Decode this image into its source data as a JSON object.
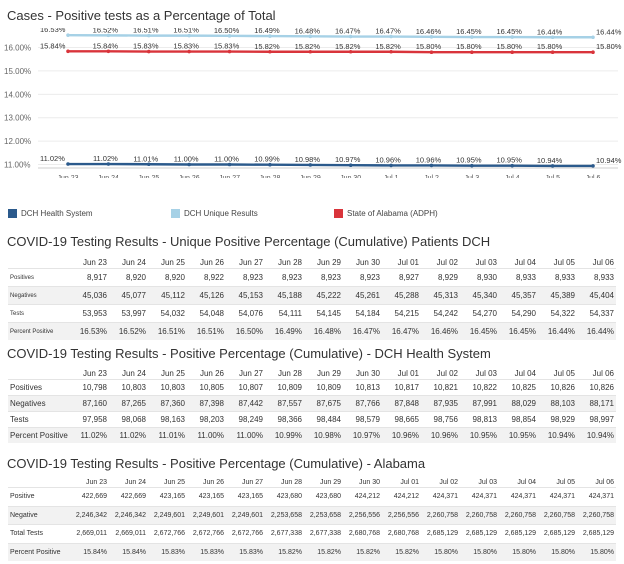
{
  "chart_title": "Cases - Positive tests as a Percentage of Total",
  "chart_data": {
    "type": "line",
    "x": [
      "Jun 23",
      "Jun 24",
      "Jun 25",
      "Jun 26",
      "Jun 27",
      "Jun 28",
      "Jun 29",
      "Jun 30",
      "Jul 1",
      "Jul 2",
      "Jul 3",
      "Jul 4",
      "Jul 5",
      "Jul 6"
    ],
    "series": [
      {
        "name": "DCH Health System",
        "color": "#2b5a8c",
        "values": [
          11.02,
          11.02,
          11.01,
          11.0,
          11.0,
          10.99,
          10.98,
          10.97,
          10.96,
          10.96,
          10.95,
          10.95,
          10.94,
          10.94
        ]
      },
      {
        "name": "DCH Unique Results",
        "color": "#a6d1e6",
        "values": [
          16.53,
          16.52,
          16.51,
          16.51,
          16.5,
          16.49,
          16.48,
          16.47,
          16.47,
          16.46,
          16.45,
          16.45,
          16.44,
          16.44
        ]
      },
      {
        "name": "State of Alabama (ADPH)",
        "color": "#d9343b",
        "values": [
          15.84,
          15.84,
          15.83,
          15.83,
          15.83,
          15.82,
          15.82,
          15.82,
          15.82,
          15.8,
          15.8,
          15.8,
          15.8,
          15.8
        ]
      }
    ],
    "data_labels": {
      "DCH Health System": [
        "11.02%",
        "11.02%",
        "11.01%",
        "11.00%",
        "11.00%",
        "10.99%",
        "10.98%",
        "10.97%",
        "10.96%",
        "10.96%",
        "10.95%",
        "10.95%",
        "10.94%",
        "10.94%"
      ],
      "DCH Unique Results": [
        "16.53%",
        "16.52%",
        "16.51%",
        "16.51%",
        "16.50%",
        "16.49%",
        "16.48%",
        "16.47%",
        "16.47%",
        "16.46%",
        "16.45%",
        "16.45%",
        "16.44%",
        "16.44%"
      ],
      "State of Alabama (ADPH)": [
        "15.84%",
        "15.84%",
        "15.83%",
        "15.83%",
        "15.83%",
        "15.82%",
        "15.82%",
        "15.82%",
        "15.82%",
        "15.80%",
        "15.80%",
        "15.80%",
        "15.80%",
        "15.80%"
      ]
    },
    "yticks": [
      11,
      12,
      13,
      14,
      15,
      16
    ],
    "ytick_labels": [
      "11.00%",
      "12.00%",
      "13.00%",
      "14.00%",
      "15.00%",
      "16.00%"
    ],
    "ylim": [
      10.85,
      16.75
    ],
    "xlabel": "",
    "ylabel": "",
    "grid": true,
    "legend_position": "bottom"
  },
  "legend": [
    {
      "label": "DCH Health System",
      "color": "#2b5a8c"
    },
    {
      "label": "DCH Unique Results",
      "color": "#a6d1e6"
    },
    {
      "label": "State of Alabama (ADPH)",
      "color": "#d9343b"
    }
  ],
  "tables": [
    {
      "title": "COVID-19 Testing Results - Unique Positive Percentage (Cumulative) Patients DCH",
      "columns": [
        "Jun 23",
        "Jun 24",
        "Jun 25",
        "Jun 26",
        "Jun 27",
        "Jun 28",
        "Jun 29",
        "Jun 30",
        "Jul 01",
        "Jul 02",
        "Jul 03",
        "Jul 04",
        "Jul 05",
        "Jul 06"
      ],
      "rows": [
        {
          "label": "Positives",
          "values": [
            "8,917",
            "8,920",
            "8,920",
            "8,922",
            "8,923",
            "8,923",
            "8,923",
            "8,923",
            "8,927",
            "8,929",
            "8,930",
            "8,933",
            "8,933",
            "8,933"
          ]
        },
        {
          "label": "Negatives",
          "values": [
            "45,036",
            "45,077",
            "45,112",
            "45,126",
            "45,153",
            "45,188",
            "45,222",
            "45,261",
            "45,288",
            "45,313",
            "45,340",
            "45,357",
            "45,389",
            "45,404"
          ]
        },
        {
          "label": "Tests",
          "values": [
            "53,953",
            "53,997",
            "54,032",
            "54,048",
            "54,076",
            "54,111",
            "54,145",
            "54,184",
            "54,215",
            "54,242",
            "54,270",
            "54,290",
            "54,322",
            "54,337"
          ]
        },
        {
          "label": "Percent Positive",
          "values": [
            "16.53%",
            "16.52%",
            "16.51%",
            "16.51%",
            "16.50%",
            "16.49%",
            "16.48%",
            "16.47%",
            "16.47%",
            "16.46%",
            "16.45%",
            "16.45%",
            "16.44%",
            "16.44%"
          ]
        }
      ]
    },
    {
      "title": "COVID-19 Testing Results - Positive Percentage (Cumulative) - DCH Health System",
      "columns": [
        "Jun 23",
        "Jun 24",
        "Jun 25",
        "Jun 26",
        "Jun 27",
        "Jun 28",
        "Jun 29",
        "Jun 30",
        "Jul 01",
        "Jul 02",
        "Jul 03",
        "Jul 04",
        "Jul 05",
        "Jul 06"
      ],
      "rows": [
        {
          "label": "Positives",
          "values": [
            "10,798",
            "10,803",
            "10,803",
            "10,805",
            "10,807",
            "10,809",
            "10,809",
            "10,813",
            "10,817",
            "10,821",
            "10,822",
            "10,825",
            "10,826",
            "10,826"
          ]
        },
        {
          "label": "Negatives",
          "values": [
            "87,160",
            "87,265",
            "87,360",
            "87,398",
            "87,442",
            "87,557",
            "87,675",
            "87,766",
            "87,848",
            "87,935",
            "87,991",
            "88,029",
            "88,103",
            "88,171"
          ]
        },
        {
          "label": "Tests",
          "values": [
            "97,958",
            "98,068",
            "98,163",
            "98,203",
            "98,249",
            "98,366",
            "98,484",
            "98,579",
            "98,665",
            "98,756",
            "98,813",
            "98,854",
            "98,929",
            "98,997"
          ]
        },
        {
          "label": "Percent Positive",
          "values": [
            "11.02%",
            "11.02%",
            "11.01%",
            "11.00%",
            "11.00%",
            "10.99%",
            "10.98%",
            "10.97%",
            "10.96%",
            "10.96%",
            "10.95%",
            "10.95%",
            "10.94%",
            "10.94%"
          ]
        }
      ]
    },
    {
      "title": "COVID-19 Testing Results - Positive Percentage (Cumulative) - Alabama",
      "columns": [
        "Jun 23",
        "Jun 24",
        "Jun 25",
        "Jun 26",
        "Jun 27",
        "Jun 28",
        "Jun 29",
        "Jun 30",
        "Jul 01",
        "Jul 02",
        "Jul 03",
        "Jul 04",
        "Jul 05",
        "Jul 06"
      ],
      "rows": [
        {
          "label": "Positive",
          "values": [
            "422,669",
            "422,669",
            "423,165",
            "423,165",
            "423,165",
            "423,680",
            "423,680",
            "424,212",
            "424,212",
            "424,371",
            "424,371",
            "424,371",
            "424,371",
            "424,371"
          ]
        },
        {
          "label": "Negative",
          "values": [
            "2,246,342",
            "2,246,342",
            "2,249,601",
            "2,249,601",
            "2,249,601",
            "2,253,658",
            "2,253,658",
            "2,256,556",
            "2,256,556",
            "2,260,758",
            "2,260,758",
            "2,260,758",
            "2,260,758",
            "2,260,758"
          ]
        },
        {
          "label": "Total Tests",
          "values": [
            "2,669,011",
            "2,669,011",
            "2,672,766",
            "2,672,766",
            "2,672,766",
            "2,677,338",
            "2,677,338",
            "2,680,768",
            "2,680,768",
            "2,685,129",
            "2,685,129",
            "2,685,129",
            "2,685,129",
            "2,685,129"
          ]
        },
        {
          "label": "Percent Positive",
          "values": [
            "15.84%",
            "15.84%",
            "15.83%",
            "15.83%",
            "15.83%",
            "15.82%",
            "15.82%",
            "15.82%",
            "15.82%",
            "15.80%",
            "15.80%",
            "15.80%",
            "15.80%",
            "15.80%"
          ]
        }
      ]
    }
  ]
}
